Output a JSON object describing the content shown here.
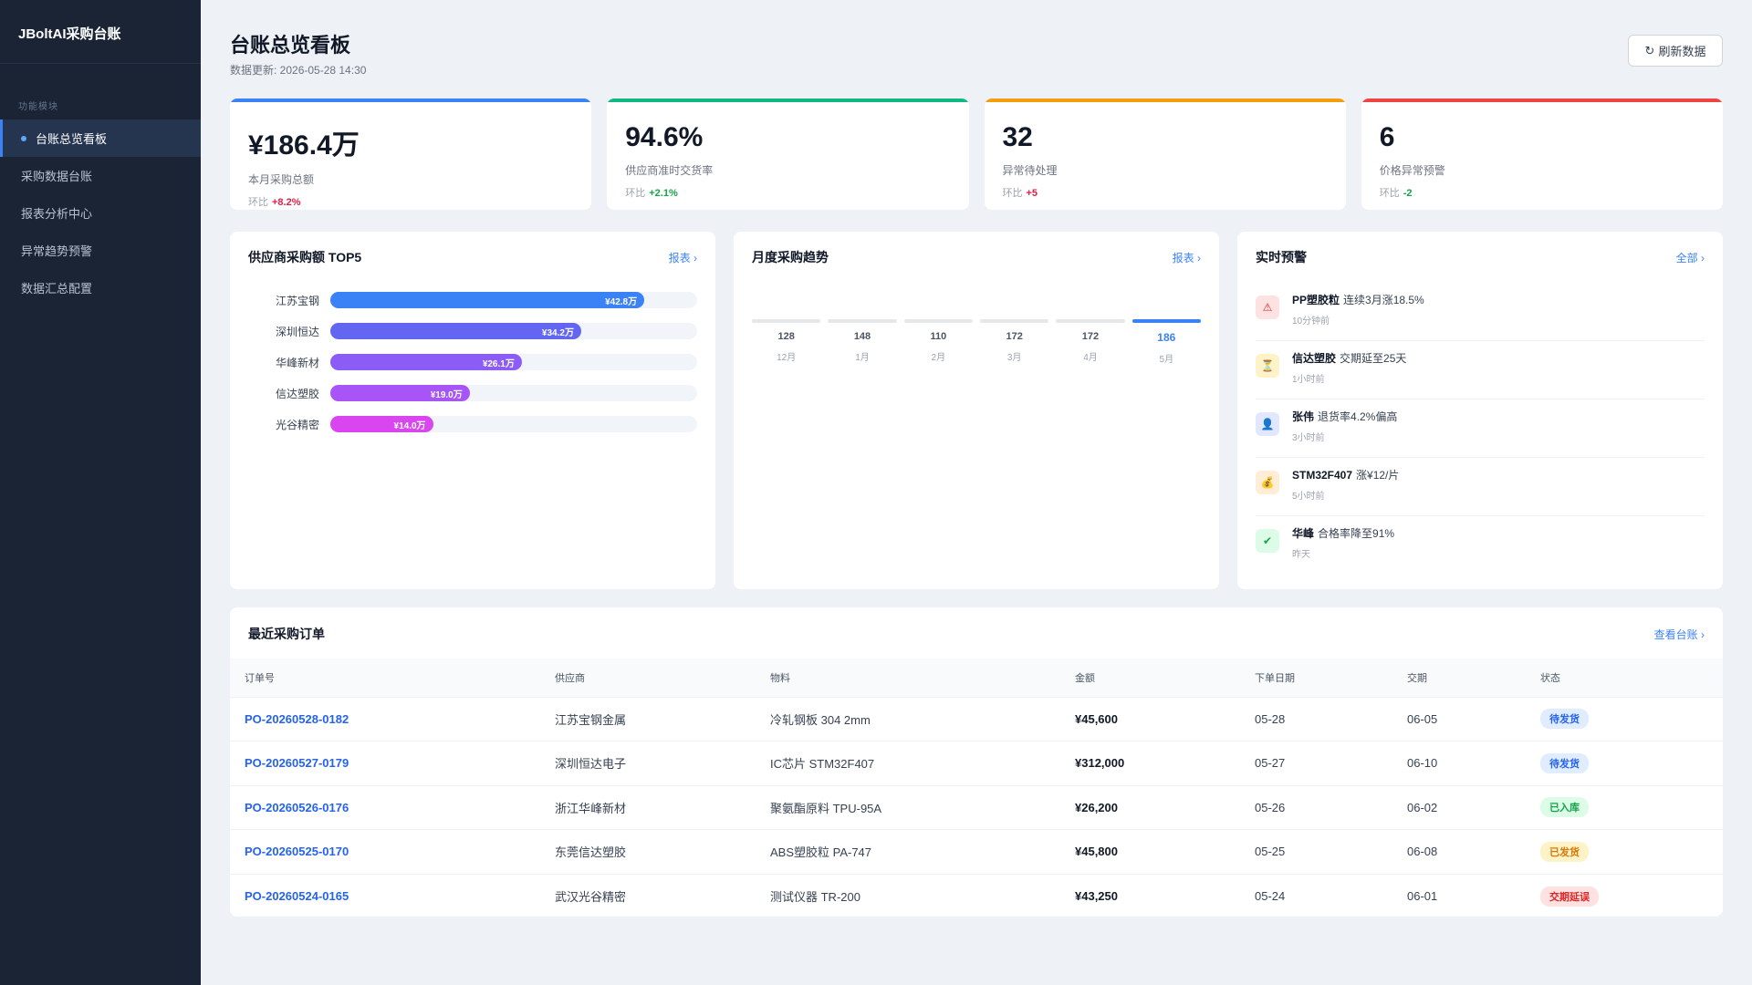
{
  "app": {
    "brand": "JBoltAI采购台账"
  },
  "sidebar": {
    "section_label": "功能模块",
    "items": [
      {
        "label": "台账总览看板",
        "active": true
      },
      {
        "label": "采购数据台账",
        "active": false
      },
      {
        "label": "报表分析中心",
        "active": false
      },
      {
        "label": "异常趋势预警",
        "active": false
      },
      {
        "label": "数据汇总配置",
        "active": false
      }
    ]
  },
  "header": {
    "title": "台账总览看板",
    "updated": "数据更新: 2026-05-28 14:30",
    "refresh_icon": "↻",
    "refresh_label": "刷新数据"
  },
  "kpis": [
    {
      "value": "¥186.4万",
      "label": "本月采购总额",
      "delta_prefix": "环比",
      "delta": "+8.2%",
      "accent": "#3b82f6",
      "delta_color": "#e11d48"
    },
    {
      "value": "94.6%",
      "label": "供应商准时交货率",
      "delta_prefix": "环比",
      "delta": "+2.1%",
      "accent": "#10b981",
      "delta_color": "#16a34a"
    },
    {
      "value": "32",
      "label": "异常待处理",
      "delta_prefix": "环比",
      "delta": "+5",
      "accent": "#f59e0b",
      "delta_color": "#e11d48"
    },
    {
      "value": "6",
      "label": "价格异常预警",
      "delta_prefix": "环比",
      "delta": "-2",
      "accent": "#ef4444",
      "delta_color": "#16a34a"
    }
  ],
  "top5": {
    "title": "供应商采购额 TOP5",
    "link": "报表 ›",
    "max": 50,
    "items": [
      {
        "name": "江苏宝钢",
        "value": 42.8,
        "label": "¥42.8万",
        "color": "#3b82f6"
      },
      {
        "name": "深圳恒达",
        "value": 34.2,
        "label": "¥34.2万",
        "color": "#6366f1"
      },
      {
        "name": "华峰新材",
        "value": 26.1,
        "label": "¥26.1万",
        "color": "#8b5cf6"
      },
      {
        "name": "信达塑胶",
        "value": 19.0,
        "label": "¥19.0万",
        "color": "#a855f7"
      },
      {
        "name": "光谷精密",
        "value": 14.0,
        "label": "¥14.0万",
        "color": "#d946ef"
      }
    ]
  },
  "trend": {
    "title": "月度采购趋势",
    "link": "报表 ›",
    "months": [
      {
        "value": "128",
        "month": "12月",
        "highlight": false
      },
      {
        "value": "148",
        "month": "1月",
        "highlight": false
      },
      {
        "value": "110",
        "month": "2月",
        "highlight": false
      },
      {
        "value": "172",
        "month": "3月",
        "highlight": false
      },
      {
        "value": "172",
        "month": "4月",
        "highlight": false
      },
      {
        "value": "186",
        "month": "5月",
        "highlight": true
      }
    ]
  },
  "alerts": {
    "title": "实时预警",
    "link": "全部 ›",
    "items": [
      {
        "icon": "⚠",
        "icon_name": "warning-icon",
        "icon_bg": "#fee2e2",
        "icon_color": "#dc2626",
        "subject": "PP塑胶粒",
        "text": "连续3月涨18.5%",
        "time": "10分钟前"
      },
      {
        "icon": "⏳",
        "icon_name": "hourglass-icon",
        "icon_bg": "#fef3c7",
        "icon_color": "#b45309",
        "subject": "信达塑胶",
        "text": "交期延至25天",
        "time": "1小时前"
      },
      {
        "icon": "👤",
        "icon_name": "user-icon",
        "icon_bg": "#e0e7ff",
        "icon_color": "#4f46e5",
        "subject": "张伟",
        "text": "退货率4.2%偏高",
        "time": "3小时前"
      },
      {
        "icon": "💰",
        "icon_name": "money-bag-icon",
        "icon_bg": "#ffedd5",
        "icon_color": "#c2410c",
        "subject": "STM32F407",
        "text": "涨¥12/片",
        "time": "5小时前"
      },
      {
        "icon": "✔",
        "icon_name": "check-icon",
        "icon_bg": "#dcfce7",
        "icon_color": "#16a34a",
        "subject": "华峰",
        "text": "合格率降至91%",
        "time": "昨天"
      }
    ]
  },
  "orders": {
    "title": "最近采购订单",
    "link": "查看台账 ›",
    "columns": [
      "订单号",
      "供应商",
      "物料",
      "金额",
      "下单日期",
      "交期",
      "状态"
    ],
    "rows": [
      {
        "id": "PO-20260528-0182",
        "supplier": "江苏宝钢金属",
        "material": "冷轧钢板 304 2mm",
        "amount": "¥45,600",
        "date": "05-28",
        "due": "06-05",
        "status": "待发货",
        "status_bg": "#e0ecff",
        "status_color": "#2563eb"
      },
      {
        "id": "PO-20260527-0179",
        "supplier": "深圳恒达电子",
        "material": "IC芯片 STM32F407",
        "amount": "¥312,000",
        "date": "05-27",
        "due": "06-10",
        "status": "待发货",
        "status_bg": "#e0ecff",
        "status_color": "#2563eb"
      },
      {
        "id": "PO-20260526-0176",
        "supplier": "浙江华峰新材",
        "material": "聚氨酯原料 TPU-95A",
        "amount": "¥26,200",
        "date": "05-26",
        "due": "06-02",
        "status": "已入库",
        "status_bg": "#dcfce7",
        "status_color": "#16a34a"
      },
      {
        "id": "PO-20260525-0170",
        "supplier": "东莞信达塑胶",
        "material": "ABS塑胶粒 PA-747",
        "amount": "¥45,800",
        "date": "05-25",
        "due": "06-08",
        "status": "已发货",
        "status_bg": "#fef3c7",
        "status_color": "#d97706"
      },
      {
        "id": "PO-20260524-0165",
        "supplier": "武汉光谷精密",
        "material": "测试仪器 TR-200",
        "amount": "¥43,250",
        "date": "05-24",
        "due": "06-01",
        "status": "交期延误",
        "status_bg": "#fee2e2",
        "status_color": "#dc2626"
      }
    ]
  }
}
